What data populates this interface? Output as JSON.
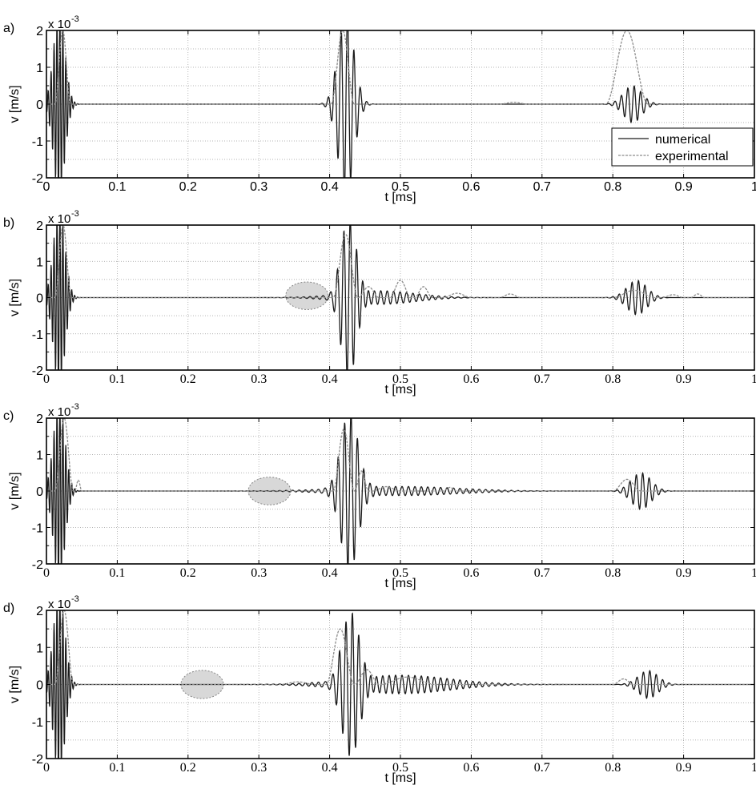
{
  "legend": {
    "numerical": "numerical",
    "experimental": "experimental",
    "placement": "inside-right (panel a)"
  },
  "colors": {
    "numerical": "#1a1a1a",
    "experimental": "#8c8c8c",
    "highlight_fill": "#d4d4d4",
    "highlight_stroke": "#777777",
    "grid": "#9a9a9a"
  },
  "chart_data": [
    {
      "type": "line",
      "panel": "a)",
      "xlabel": "t [ms]",
      "ylabel": "v [m/s]",
      "y_exponent": "x 10",
      "y_exponent_power": "-3",
      "xlim": [
        0,
        1
      ],
      "ylim": [
        -2,
        2
      ],
      "xticks": [
        "0",
        "0.1",
        "0.2",
        "0.3",
        "0.4",
        "0.5",
        "0.6",
        "0.7",
        "0.8",
        "0.9",
        "1"
      ],
      "yticks": [
        "-2",
        "-1",
        "0",
        "1",
        "2"
      ],
      "tick_font": "sans",
      "grid": true,
      "highlight": null,
      "series": [
        {
          "name": "numerical",
          "style": "solid",
          "packets": [
            {
              "center": 0.018,
              "amplitude": 2.0,
              "width": 0.008,
              "freq_per_ms": 240
            },
            {
              "center": 0.423,
              "amplitude": 2.0,
              "width": 0.011,
              "freq_per_ms": 110
            },
            {
              "center": 0.828,
              "amplitude": 0.4,
              "width": 0.013,
              "freq_per_ms": 110
            }
          ],
          "y_range_note": "clipped at ±2"
        },
        {
          "name": "experimental",
          "style": "dashed",
          "pulses": [
            {
              "start": 0.012,
              "end": 0.034,
              "peak": 2.0
            },
            {
              "start": 0.402,
              "end": 0.435,
              "peak": 2.0
            },
            {
              "start": 0.64,
              "end": 0.68,
              "peak": 0.05
            },
            {
              "start": 0.79,
              "end": 0.85,
              "peak": 2.0
            }
          ]
        }
      ]
    },
    {
      "type": "line",
      "panel": "b)",
      "xlabel": "t [ms]",
      "ylabel": "v [m/s]",
      "y_exponent": "x 10",
      "y_exponent_power": "-3",
      "xlim": [
        0,
        1
      ],
      "ylim": [
        -2,
        2
      ],
      "xticks": [
        "0",
        "0.1",
        "0.2",
        "0.3",
        "0.4",
        "0.5",
        "0.6",
        "0.7",
        "0.8",
        "0.9",
        "1"
      ],
      "yticks": [
        "-2",
        "-1",
        "0",
        "1",
        "2"
      ],
      "tick_font": "serif",
      "grid": true,
      "highlight": {
        "x_center": 0.368,
        "x_halfwidth": 0.03,
        "y_center": 0.05,
        "y_halfwidth": 0.38
      },
      "series": [
        {
          "name": "numerical",
          "style": "solid",
          "packets": [
            {
              "center": 0.018,
              "amplitude": 2.0,
              "width": 0.008,
              "freq_per_ms": 240
            },
            {
              "center": 0.427,
              "amplitude": 1.8,
              "width": 0.011,
              "freq_per_ms": 110
            },
            {
              "center": 0.47,
              "amplitude": 0.15,
              "width": 0.05,
              "freq_per_ms": 110
            },
            {
              "center": 0.834,
              "amplitude": 0.38,
              "width": 0.014,
              "freq_per_ms": 110
            }
          ]
        },
        {
          "name": "experimental",
          "style": "dashed",
          "pulses": [
            {
              "start": 0.012,
              "end": 0.035,
              "peak": 2.0
            },
            {
              "start": 0.405,
              "end": 0.44,
              "peak": 1.75
            },
            {
              "start": 0.44,
              "end": 0.47,
              "peak": 0.3
            },
            {
              "start": 0.485,
              "end": 0.515,
              "peak": 0.48
            },
            {
              "start": 0.52,
              "end": 0.545,
              "peak": 0.3
            },
            {
              "start": 0.56,
              "end": 0.6,
              "peak": 0.12
            },
            {
              "start": 0.64,
              "end": 0.67,
              "peak": 0.1
            },
            {
              "start": 0.8,
              "end": 0.86,
              "peak": 0.2
            },
            {
              "start": 0.87,
              "end": 0.9,
              "peak": 0.08
            },
            {
              "start": 0.91,
              "end": 0.93,
              "peak": 0.1
            }
          ]
        }
      ]
    },
    {
      "type": "line",
      "panel": "c)",
      "xlabel": "t [ms]",
      "ylabel": "v [m/s]",
      "y_exponent": "x 10",
      "y_exponent_power": "-3",
      "xlim": [
        0,
        1
      ],
      "ylim": [
        -2,
        2
      ],
      "xticks": [
        "0",
        "0.1",
        "0.2",
        "0.3",
        "0.4",
        "0.5",
        "0.6",
        "0.7",
        "0.8",
        "0.9",
        "1"
      ],
      "yticks": [
        "-2",
        "-1",
        "0",
        "1",
        "2"
      ],
      "tick_font": "serif",
      "grid": true,
      "highlight": {
        "x_center": 0.315,
        "x_halfwidth": 0.03,
        "y_center": 0.0,
        "y_halfwidth": 0.38
      },
      "series": [
        {
          "name": "numerical",
          "style": "solid",
          "packets": [
            {
              "center": 0.018,
              "amplitude": 2.0,
              "width": 0.008,
              "freq_per_ms": 240
            },
            {
              "center": 0.428,
              "amplitude": 1.7,
              "width": 0.012,
              "freq_per_ms": 110
            },
            {
              "center": 0.5,
              "amplitude": 0.1,
              "width": 0.08,
              "freq_per_ms": 110
            },
            {
              "center": 0.84,
              "amplitude": 0.4,
              "width": 0.014,
              "freq_per_ms": 110
            }
          ]
        },
        {
          "name": "experimental",
          "style": "dashed",
          "pulses": [
            {
              "start": 0.012,
              "end": 0.038,
              "peak": 2.0
            },
            {
              "start": 0.04,
              "end": 0.05,
              "peak": 0.3
            },
            {
              "start": 0.405,
              "end": 0.435,
              "peak": 1.7
            },
            {
              "start": 0.435,
              "end": 0.455,
              "peak": 0.55
            },
            {
              "start": 0.46,
              "end": 0.5,
              "peak": 0.12
            },
            {
              "start": 0.56,
              "end": 0.58,
              "peak": 0.1
            },
            {
              "start": 0.8,
              "end": 0.84,
              "peak": 0.32
            }
          ]
        }
      ]
    },
    {
      "type": "line",
      "panel": "d)",
      "xlabel": "t [ms]",
      "ylabel": "v [m/s]",
      "y_exponent": "x 10",
      "y_exponent_power": "-3",
      "xlim": [
        0,
        1
      ],
      "ylim": [
        -2,
        2
      ],
      "xticks": [
        "0",
        "0.1",
        "0.2",
        "0.3",
        "0.4",
        "0.5",
        "0.6",
        "0.7",
        "0.8",
        "0.9",
        "1"
      ],
      "yticks": [
        "-2",
        "-1",
        "0",
        "1",
        "2"
      ],
      "tick_font": "serif",
      "grid": true,
      "highlight": {
        "x_center": 0.22,
        "x_halfwidth": 0.03,
        "y_center": 0.0,
        "y_halfwidth": 0.38
      },
      "series": [
        {
          "name": "numerical",
          "style": "solid",
          "packets": [
            {
              "center": 0.018,
              "amplitude": 2.0,
              "width": 0.008,
              "freq_per_ms": 240
            },
            {
              "center": 0.43,
              "amplitude": 1.6,
              "width": 0.013,
              "freq_per_ms": 110
            },
            {
              "center": 0.5,
              "amplitude": 0.2,
              "width": 0.07,
              "freq_per_ms": 110
            },
            {
              "center": 0.85,
              "amplitude": 0.3,
              "width": 0.014,
              "freq_per_ms": 110
            }
          ]
        },
        {
          "name": "experimental",
          "style": "dashed",
          "pulses": [
            {
              "start": 0.012,
              "end": 0.038,
              "peak": 2.0
            },
            {
              "start": 0.33,
              "end": 0.38,
              "peak": 0.07
            },
            {
              "start": 0.395,
              "end": 0.435,
              "peak": 1.5
            },
            {
              "start": 0.435,
              "end": 0.47,
              "peak": 0.4
            },
            {
              "start": 0.47,
              "end": 0.55,
              "peak": 0.2
            },
            {
              "start": 0.8,
              "end": 0.83,
              "peak": 0.15
            }
          ]
        }
      ]
    }
  ]
}
